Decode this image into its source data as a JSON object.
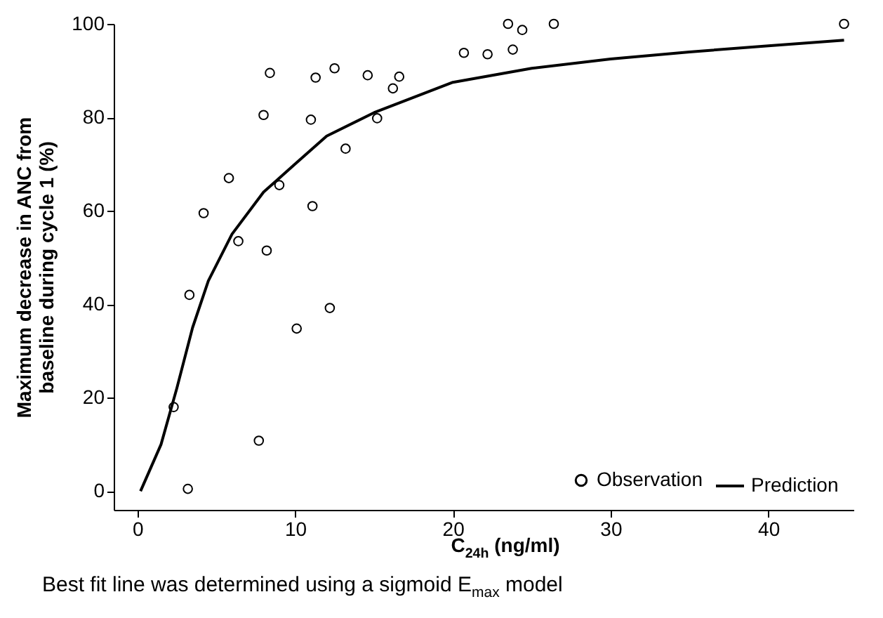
{
  "chart_data": {
    "type": "scatter",
    "xlabel": "C$_{24h}$ (ng/ml)",
    "ylabel": "Maximum decrease in ANC from baseline during cycle 1 (%)",
    "annotations": [
      "Best fit line was determined using a sigmoid E$_{max}$ model"
    ],
    "xlim": [
      -1.5,
      45.4
    ],
    "xticks": [
      0,
      10,
      20,
      30,
      40
    ],
    "ylim": [
      -4,
      100
    ],
    "yticks": [
      0,
      20,
      40,
      60,
      80,
      100
    ],
    "legend": "bottom right",
    "grid": false,
    "series": [
      {
        "name": "Observation",
        "marker": "circle",
        "color": "#000000",
        "x": [
          2.3,
          3.2,
          3.3,
          4.2,
          5.8,
          6.4,
          7.7,
          8.0,
          8.2,
          8.4,
          9.0,
          10.1,
          11.0,
          11.1,
          11.3,
          12.2,
          12.5,
          13.2,
          14.6,
          15.2,
          16.2,
          16.6,
          20.7,
          22.2,
          23.5,
          23.8,
          24.4,
          26.4,
          44.8
        ],
        "values": [
          18,
          0.5,
          42,
          59.5,
          67,
          53.5,
          10.8,
          80.5,
          51.5,
          89.5,
          65.5,
          34.8,
          79.5,
          61,
          88.5,
          39.2,
          90.5,
          73.3,
          89,
          79.8,
          86.2,
          88.7,
          93.8,
          93.5,
          100,
          94.5,
          98.7,
          100,
          100
        ]
      },
      {
        "name": "Prediction",
        "type": "line",
        "line_style": "solid",
        "color": "#000000",
        "x": [
          0.2,
          1.5,
          2.5,
          3.5,
          4.5,
          6,
          8,
          10,
          12,
          15,
          20,
          25,
          30,
          35,
          40,
          44.8
        ],
        "values": [
          0,
          10,
          22,
          35,
          45,
          55,
          64,
          70,
          76,
          81,
          87.5,
          90.5,
          92.5,
          94,
          95.3,
          96.5
        ]
      }
    ]
  }
}
